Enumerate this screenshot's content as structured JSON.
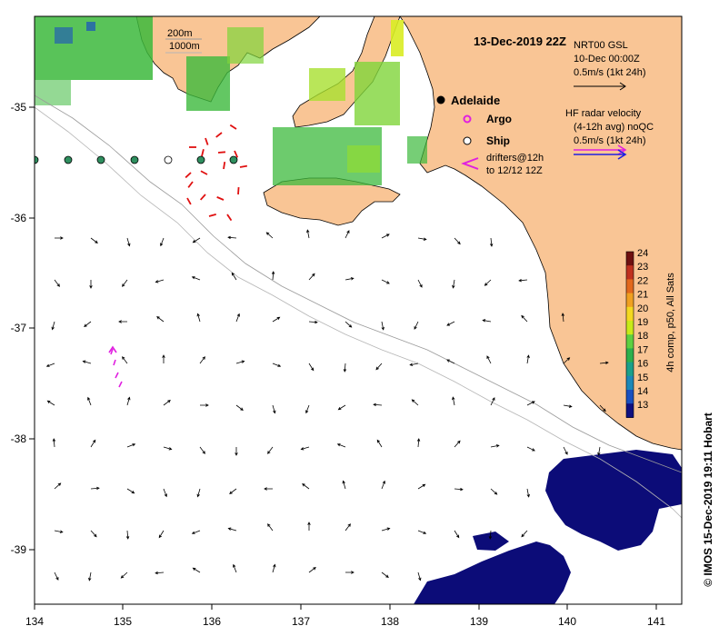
{
  "title": "13-Dec-2019 22Z",
  "depth_contours": [
    "200m",
    "1000m"
  ],
  "city": "Adelaide",
  "legend": {
    "argo": "Argo",
    "ship": "Ship",
    "drifters_line1": "drifters@12h",
    "drifters_line2": "to 12/12 12Z",
    "gsl_line1": "NRT00 GSL",
    "gsl_line2": "10-Dec 00:00Z",
    "gsl_line3": "0.5m/s (1kt 24h)",
    "hf_line1": "HF radar velocity",
    "hf_line2": "(4-12h avg) noQC",
    "hf_line3": "0.5m/s (1kt 24h)"
  },
  "colorbar": {
    "label": "4h comp, p50, All Sats",
    "ticks": [
      "24",
      "23",
      "22",
      "21",
      "20",
      "19",
      "18",
      "17",
      "16",
      "15",
      "14",
      "13"
    ],
    "colors": [
      "#6e1010",
      "#c0301e",
      "#e2681c",
      "#f0a020",
      "#f4d820",
      "#c8ea18",
      "#5ed040",
      "#2cb04c",
      "#1aa08a",
      "#1c88b8",
      "#1a50c0",
      "#101080"
    ]
  },
  "axes": {
    "lon_ticks": [
      "134",
      "135",
      "136",
      "137",
      "138",
      "139",
      "140",
      "141"
    ],
    "lat_ticks": [
      "-35",
      "-36",
      "-37",
      "-38",
      "-39"
    ]
  },
  "credit": "© IMOS 15-Dec-2019 19:11 Hobart",
  "colors": {
    "land": "#f9c595",
    "cold": "#0c0c78",
    "green": "#3cb93c"
  }
}
